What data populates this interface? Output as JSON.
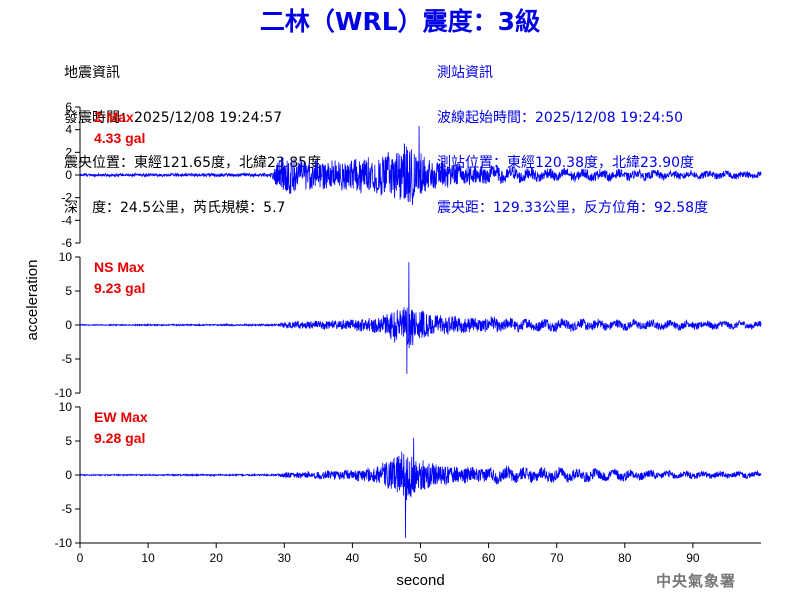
{
  "title": "二林（WRL）震度：3級",
  "station_info_left": {
    "header": "地震資訊",
    "origin_time": "發震時間：2025/12/08 19:24:57",
    "epicenter": "震央位置：東經121.65度，北緯23.85度",
    "depth_magnitude": "深　度：24.5公里，芮氏規模：5.7"
  },
  "station_info_right": {
    "header": "測站資訊",
    "wave_start": "波線起始時間：2025/12/08 19:24:50",
    "station_location": "測站位置：東經120.38度，北緯23.90度",
    "distance": "震央距：129.33公里，反方位角：92.58度"
  },
  "footer": "中央氣象署",
  "colors": {
    "title": "#0000e6",
    "trace": "#0000ff",
    "max_label": "#e60000",
    "footer": "#777777"
  },
  "chart_data": {
    "type": "line",
    "xlabel": "second",
    "ylabel": "acceleration",
    "xlim": [
      0,
      100
    ],
    "xticks": [
      0,
      10,
      20,
      30,
      40,
      50,
      60,
      70,
      80,
      90
    ],
    "panels": [
      {
        "name": "Z",
        "max_label": "Z Max",
        "max_value": "4.33 gal",
        "ylim": [
          -6,
          6
        ],
        "yticks": [
          -6,
          -4,
          -2,
          0,
          2,
          4,
          6
        ],
        "series_envelope": {
          "t": [
            0,
            28,
            29,
            30,
            33,
            36,
            40,
            44,
            46,
            48,
            50,
            52,
            55,
            60,
            65,
            70,
            80,
            90,
            100
          ],
          "amp": [
            0.15,
            0.2,
            1.5,
            2.2,
            1.7,
            1.5,
            1.8,
            2.2,
            2.8,
            3.6,
            2.6,
            1.6,
            1.3,
            0.9,
            0.7,
            0.6,
            0.5,
            0.4,
            0.35
          ],
          "peaks": [
            {
              "t": 49.8,
              "value": 4.33
            }
          ]
        }
      },
      {
        "name": "NS",
        "max_label": "NS Max",
        "max_value": "9.23 gal",
        "ylim": [
          -10,
          10
        ],
        "yticks": [
          -10,
          -5,
          0,
          5,
          10
        ],
        "series_envelope": {
          "t": [
            0,
            29,
            30,
            35,
            40,
            44,
            46,
            48,
            50,
            52,
            55,
            60,
            65,
            70,
            75,
            80,
            90,
            100
          ],
          "amp": [
            0.1,
            0.15,
            0.6,
            0.8,
            1.0,
            1.5,
            3.0,
            4.5,
            3.0,
            2.0,
            1.6,
            1.3,
            1.0,
            1.0,
            0.9,
            0.8,
            0.7,
            0.6
          ],
          "peaks": [
            {
              "t": 48.3,
              "value": 9.23
            },
            {
              "t": 48.0,
              "value": -7.2
            }
          ]
        }
      },
      {
        "name": "EW",
        "max_label": "EW Max",
        "max_value": "9.28 gal",
        "ylim": [
          -10,
          10
        ],
        "yticks": [
          -10,
          -5,
          0,
          5,
          10
        ],
        "series_envelope": {
          "t": [
            0,
            29,
            30,
            35,
            40,
            44,
            46,
            48,
            50,
            52,
            55,
            60,
            65,
            70,
            75,
            80,
            90,
            100
          ],
          "amp": [
            0.1,
            0.15,
            0.5,
            0.7,
            1.0,
            1.8,
            3.5,
            4.6,
            3.3,
            2.2,
            1.6,
            1.3,
            1.2,
            1.1,
            1.0,
            0.9,
            0.6,
            0.5
          ],
          "peaks": [
            {
              "t": 47.8,
              "value": -9.28
            },
            {
              "t": 49.0,
              "value": 5.5
            }
          ]
        }
      }
    ]
  }
}
